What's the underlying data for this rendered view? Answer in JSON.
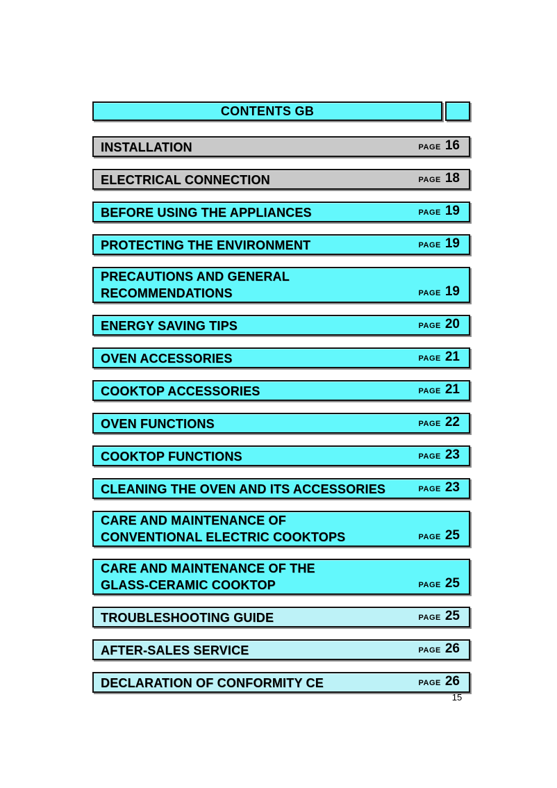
{
  "header": {
    "title": "CONTENTS GB"
  },
  "labels": {
    "page_word": "PAGE"
  },
  "footer": {
    "page_number": "15"
  },
  "colors": {
    "cyan": "#63f8fc",
    "cyan_light": "#bdf2f7",
    "gray": "#c9c9c9",
    "border": "#131313",
    "shadow": "#909090"
  },
  "toc": {
    "entries": [
      {
        "lines": [
          "INSTALLATION"
        ],
        "page": "16",
        "variant": "gray"
      },
      {
        "lines": [
          "ELECTRICAL CONNECTION"
        ],
        "page": "18",
        "variant": "gray"
      },
      {
        "lines": [
          "BEFORE USING THE APPLIANCES"
        ],
        "page": "19",
        "variant": "cyan"
      },
      {
        "lines": [
          "PROTECTING THE ENVIRONMENT"
        ],
        "page": "19",
        "variant": "cyan"
      },
      {
        "lines": [
          "PRECAUTIONS AND GENERAL",
          "RECOMMENDATIONS"
        ],
        "page": "19",
        "variant": "cyan"
      },
      {
        "lines": [
          "ENERGY SAVING TIPS"
        ],
        "page": "20",
        "variant": "cyan"
      },
      {
        "lines": [
          "OVEN ACCESSORIES"
        ],
        "page": "21",
        "variant": "cyan"
      },
      {
        "lines": [
          "COOKTOP ACCESSORIES"
        ],
        "page": "21",
        "variant": "cyan"
      },
      {
        "lines": [
          "OVEN FUNCTIONS"
        ],
        "page": "22",
        "variant": "cyan"
      },
      {
        "lines": [
          "COOKTOP FUNCTIONS"
        ],
        "page": "23",
        "variant": "cyan"
      },
      {
        "lines": [
          "CLEANING THE OVEN AND ITS ACCESSORIES"
        ],
        "page": "23",
        "variant": "cyan"
      },
      {
        "lines": [
          "CARE AND MAINTENANCE OF",
          "CONVENTIONAL ELECTRIC COOKTOPS"
        ],
        "page": "25",
        "variant": "cyan"
      },
      {
        "lines": [
          "CARE AND MAINTENANCE OF THE",
          "GLASS-CERAMIC COOKTOP"
        ],
        "page": "25",
        "variant": "cyan"
      },
      {
        "lines": [
          "TROUBLESHOOTING GUIDE"
        ],
        "page": "25",
        "variant": "cyan-light"
      },
      {
        "lines": [
          "AFTER-SALES SERVICE"
        ],
        "page": "26",
        "variant": "cyan-light"
      },
      {
        "lines": [
          "DECLARATION OF CONFORMITY CE"
        ],
        "page": "26",
        "variant": "cyan-light"
      }
    ]
  }
}
